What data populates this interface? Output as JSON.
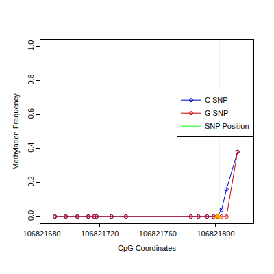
{
  "chart_data": {
    "type": "line",
    "x_label": "CpG Coordinates",
    "y_label": "Methylation Frequency",
    "x": [
      106821689,
      106821696.5,
      106821704.5,
      106821712,
      106821716,
      106821717.7,
      106821728,
      106821738,
      106821782.8,
      106821788,
      106821794,
      106821798.4,
      106821801,
      106821804,
      106821807.4,
      106821815
    ],
    "series": [
      {
        "name": "C SNP",
        "color": "#0000cc",
        "marker": "circle-open",
        "values": [
          0,
          0,
          0,
          0,
          0,
          0,
          0,
          0,
          0,
          0,
          0,
          0,
          0,
          0.04,
          0.16,
          0.38
        ]
      },
      {
        "name": "G SNP",
        "color": "#cc0000",
        "marker": "circle-open",
        "values": [
          0,
          0,
          0,
          0,
          0,
          0,
          0,
          0,
          0,
          0,
          0,
          0,
          0,
          0,
          0,
          0.38
        ]
      }
    ],
    "snp_line": {
      "name": "SNP Position",
      "color": "#00ff00",
      "x": 106821802.2
    },
    "snp_marker": {
      "x": 106821801.5,
      "y": 0,
      "color": "#ffa500",
      "marker": "triangle-up"
    },
    "xlim": [
      106821679,
      106821826
    ],
    "ylim": [
      -0.04,
      1.04
    ],
    "xticks": [
      106821680,
      106821720,
      106821760,
      106821800
    ],
    "yticks": [
      {
        "value": 0,
        "label": "0.0"
      },
      {
        "value": 0.2,
        "label": "0.2"
      },
      {
        "value": 0.4,
        "label": "0.4"
      },
      {
        "value": 0.6,
        "label": "0.6"
      },
      {
        "value": 0.8,
        "label": "0.8"
      },
      {
        "value": 1,
        "label": "1.0"
      }
    ],
    "legend": "right",
    "grid": false
  }
}
